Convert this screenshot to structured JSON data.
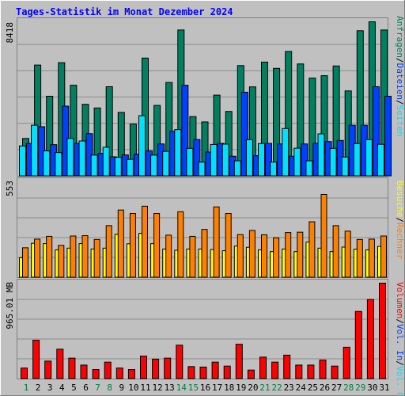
{
  "chart_data": {
    "title": "Tages-Statistik im Monat Dezember 2024",
    "days": [
      "1",
      "2",
      "3",
      "4",
      "5",
      "6",
      "7",
      "8",
      "9",
      "10",
      "11",
      "12",
      "13",
      "14",
      "15",
      "16",
      "17",
      "18",
      "19",
      "20",
      "21",
      "22",
      "23",
      "24",
      "25",
      "26",
      "27",
      "28",
      "29",
      "30",
      "31"
    ],
    "weekend_days": [
      "1",
      "7",
      "8",
      "14",
      "15",
      "21",
      "22",
      "28",
      "29"
    ],
    "colors": {
      "day_normal": "#000000",
      "day_weekend": "#008040",
      "anfragen": "#008060",
      "dateien": "#0040ff",
      "seiten": "#00e0ff",
      "besuche": "#ffff00",
      "rechner": "#ff8000",
      "volumen": "#ff0000",
      "title": "#0000ff"
    },
    "panels": [
      {
        "type": "bar",
        "axis_max_label": "8418",
        "ylim": [
          0,
          8418
        ],
        "legend": [
          {
            "label": "Anfragen",
            "color_key": "anfragen"
          },
          {
            "label": "/",
            "color_key": "separator"
          },
          {
            "label": "Dateien",
            "color_key": "dateien"
          },
          {
            "label": "/",
            "color_key": "separator"
          },
          {
            "label": "Seiten",
            "color_key": "seiten"
          }
        ],
        "series": [
          {
            "name": "Anfragen",
            "color_key": "anfragen",
            "values": [
              2060,
              6060,
              4360,
              6190,
              4960,
              3920,
              3720,
              4880,
              3480,
              2840,
              6440,
              3860,
              5110,
              7970,
              3250,
              2960,
              4420,
              3530,
              6030,
              4870,
              6220,
              5880,
              6800,
              6120,
              5350,
              5480,
              6010,
              4650,
              7930,
              8418,
              7970
            ]
          },
          {
            "name": "Dateien",
            "color_key": "dateien",
            "values": [
              1790,
              2700,
              1720,
              3820,
              1790,
              2320,
              1250,
              1060,
              1160,
              1200,
              1380,
              1760,
              2450,
              4960,
              2000,
              1320,
              1790,
              1090,
              4580,
              1120,
              1790,
              1760,
              1090,
              1760,
              1790,
              1890,
              1950,
              2780,
              2780,
              4880,
              4360
            ]
          },
          {
            "name": "Seiten",
            "color_key": "seiten",
            "values": [
              1650,
              2780,
              1380,
              1290,
              2060,
              1920,
              1150,
              1580,
              1030,
              920,
              3300,
              1150,
              1350,
              2540,
              1520,
              770,
              1730,
              1750,
              840,
              1990,
              1780,
              770,
              2600,
              1530,
              840,
              2310,
              1520,
              1050,
              1780,
              1990,
              1740
            ]
          }
        ]
      },
      {
        "type": "bar",
        "axis_max_label": "553",
        "ylim": [
          0,
          553
        ],
        "legend": [
          {
            "label": "Besuche",
            "color_key": "besuche"
          },
          {
            "label": "/",
            "color_key": "separator"
          },
          {
            "label": "Rechner",
            "color_key": "rechner"
          }
        ],
        "series": [
          {
            "name": "Besuche",
            "color_key": "besuche",
            "values": [
              115,
              198,
              196,
              160,
              170,
              196,
              165,
              170,
              250,
              195,
              255,
              196,
              165,
              158,
              165,
              165,
              162,
              155,
              182,
              175,
              160,
              150,
              165,
              150,
              205,
              170,
              150,
              176,
              164,
              160,
              180
            ]
          },
          {
            "name": "Rechner",
            "color_key": "rechner",
            "values": [
              172,
              222,
              238,
              186,
              240,
              242,
              220,
              300,
              390,
              370,
              412,
              370,
              245,
              380,
              238,
              278,
              408,
              370,
              248,
              272,
              247,
              230,
              260,
              262,
              322,
              480,
              300,
              268,
              220,
              222,
              240
            ]
          }
        ]
      },
      {
        "type": "bar",
        "axis_max_label": "965.01 MB",
        "ylim": [
          0,
          965.01
        ],
        "legend": [
          {
            "label": "Volumen",
            "color_key": "volumen"
          },
          {
            "label": "/",
            "color_key": "separator"
          },
          {
            "label": "Vol. In",
            "color_key": "dateien"
          },
          {
            "label": "/",
            "color_key": "separator"
          },
          {
            "label": "Vol. Out",
            "color_key": "seiten"
          }
        ],
        "series": [
          {
            "name": "Volumen",
            "color_key": "volumen",
            "values": [
              110,
              390,
              180,
              300,
              210,
              140,
              95,
              170,
              110,
              95,
              230,
              200,
              210,
              340,
              125,
              120,
              170,
              130,
              350,
              90,
              220,
              170,
              240,
              140,
              140,
              190,
              130,
              320,
              680,
              800,
              965.01
            ]
          }
        ]
      }
    ]
  }
}
